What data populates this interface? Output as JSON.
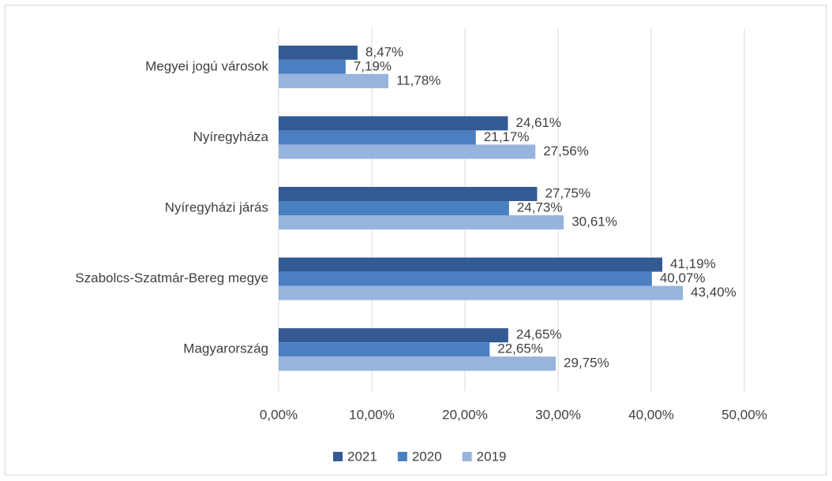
{
  "chart_data": {
    "type": "bar",
    "orientation": "horizontal",
    "categories": [
      "Megyei jogú városok",
      "Nyíregyháza",
      "Nyíregyházi járás",
      "Szabolcs-Szatmár-Bereg megye",
      "Magyarország"
    ],
    "series": [
      {
        "name": "2021",
        "color": "#335a92",
        "values": [
          8.47,
          24.61,
          27.75,
          41.19,
          24.65
        ],
        "value_labels": [
          "8,47%",
          "24,61%",
          "27,75%",
          "41,19%",
          "24,65%"
        ]
      },
      {
        "name": "2020",
        "color": "#4a7fc1",
        "values": [
          7.19,
          21.17,
          24.73,
          40.07,
          22.65
        ],
        "value_labels": [
          "7,19%",
          "21,17%",
          "24,73%",
          "40,07%",
          "22,65%"
        ]
      },
      {
        "name": "2019",
        "color": "#97b4dc",
        "values": [
          11.78,
          27.56,
          30.61,
          43.4,
          29.75
        ],
        "value_labels": [
          "11,78%",
          "27,56%",
          "30,61%",
          "43,40%",
          "29,75%"
        ]
      }
    ],
    "xlim": [
      0,
      50
    ],
    "xticks": [
      {
        "value": 0,
        "label": "0,00%"
      },
      {
        "value": 10,
        "label": "10,00%"
      },
      {
        "value": 20,
        "label": "20,00%"
      },
      {
        "value": 30,
        "label": "30,00%"
      },
      {
        "value": 40,
        "label": "40,00%"
      },
      {
        "value": 50,
        "label": "50,00%"
      }
    ],
    "grid": true,
    "legend": "bottom"
  }
}
